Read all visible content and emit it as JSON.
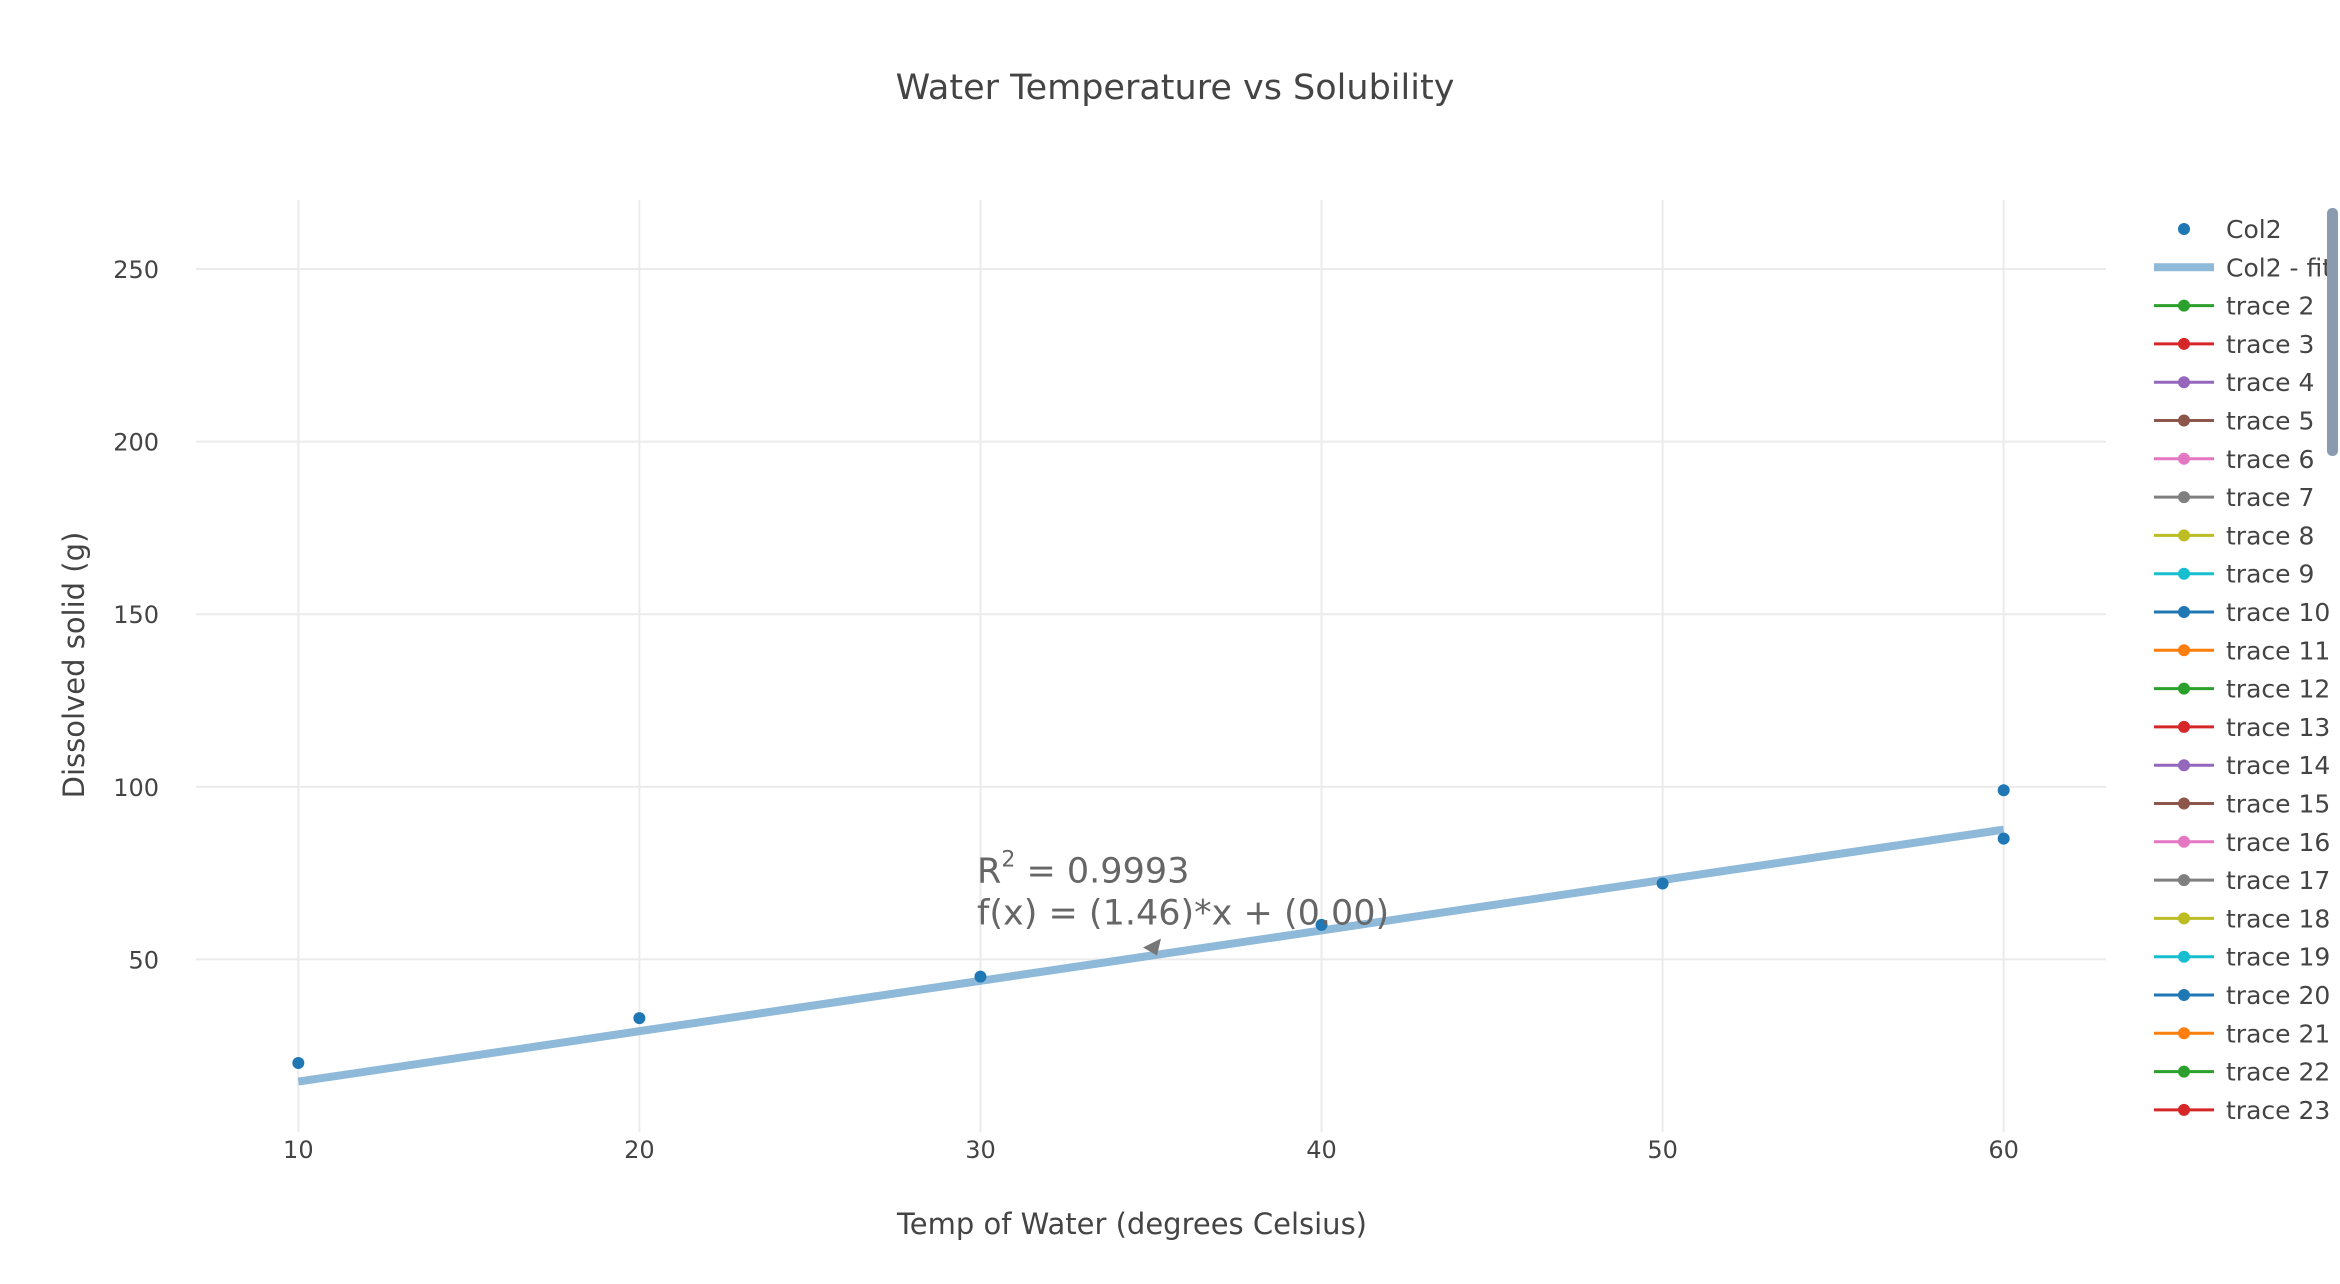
{
  "chart_data": {
    "type": "scatter",
    "title": "Water Temperature vs Solubility",
    "xlabel": "Temp of Water (degrees Celsius)",
    "ylabel": "Dissolved solid (g)",
    "xlim": [
      7,
      63
    ],
    "ylim": [
      0,
      270
    ],
    "xticks": [
      10,
      20,
      30,
      40,
      50,
      60
    ],
    "yticks": [
      50,
      100,
      150,
      200,
      250
    ],
    "grid": true,
    "legend_position": "right",
    "series": [
      {
        "name": "Col2",
        "kind": "markers",
        "color": "#1f77b4",
        "x": [
          10,
          20,
          30,
          40,
          50,
          60,
          60
        ],
        "y": [
          20,
          33,
          45,
          60,
          72,
          99,
          85
        ]
      },
      {
        "name": "Col2 - fit",
        "kind": "line",
        "color": "#8fb9d8",
        "x": [
          10,
          60
        ],
        "y": [
          14.6,
          87.6
        ]
      }
    ],
    "annotation": {
      "r2_label": "R",
      "r2_sup": "2",
      "r2_value": " = 0.9993",
      "equation": "f(x) = (1.46)*x + (0.00)",
      "arrow_x": 35,
      "arrow_y": 52
    },
    "legend_entries": [
      {
        "name": "Col2",
        "kind": "marker",
        "color": "#1f77b4"
      },
      {
        "name": "Col2 - fit",
        "kind": "fit",
        "color": "#8fb9d8"
      },
      {
        "name": "trace 2",
        "kind": "line-marker",
        "color": "#2ca02c"
      },
      {
        "name": "trace 3",
        "kind": "line-marker",
        "color": "#d62728"
      },
      {
        "name": "trace 4",
        "kind": "line-marker",
        "color": "#9467bd"
      },
      {
        "name": "trace 5",
        "kind": "line-marker",
        "color": "#8c564b"
      },
      {
        "name": "trace 6",
        "kind": "line-marker",
        "color": "#e377c2"
      },
      {
        "name": "trace 7",
        "kind": "line-marker",
        "color": "#7f7f7f"
      },
      {
        "name": "trace 8",
        "kind": "line-marker",
        "color": "#bcbd22"
      },
      {
        "name": "trace 9",
        "kind": "line-marker",
        "color": "#17becf"
      },
      {
        "name": "trace 10",
        "kind": "line-marker",
        "color": "#1f77b4"
      },
      {
        "name": "trace 11",
        "kind": "line-marker",
        "color": "#ff7f0e"
      },
      {
        "name": "trace 12",
        "kind": "line-marker",
        "color": "#2ca02c"
      },
      {
        "name": "trace 13",
        "kind": "line-marker",
        "color": "#d62728"
      },
      {
        "name": "trace 14",
        "kind": "line-marker",
        "color": "#9467bd"
      },
      {
        "name": "trace 15",
        "kind": "line-marker",
        "color": "#8c564b"
      },
      {
        "name": "trace 16",
        "kind": "line-marker",
        "color": "#e377c2"
      },
      {
        "name": "trace 17",
        "kind": "line-marker",
        "color": "#7f7f7f"
      },
      {
        "name": "trace 18",
        "kind": "line-marker",
        "color": "#bcbd22"
      },
      {
        "name": "trace 19",
        "kind": "line-marker",
        "color": "#17becf"
      },
      {
        "name": "trace 20",
        "kind": "line-marker",
        "color": "#1f77b4"
      },
      {
        "name": "trace 21",
        "kind": "line-marker",
        "color": "#ff7f0e"
      },
      {
        "name": "trace 22",
        "kind": "line-marker",
        "color": "#2ca02c"
      },
      {
        "name": "trace 23",
        "kind": "line-marker",
        "color": "#d62728"
      }
    ],
    "colors": {
      "grid": "#ebebeb",
      "text": "#444444",
      "annotation_text": "#666666",
      "arrow": "#777777",
      "scrollbar": "#8a9bb0"
    }
  }
}
